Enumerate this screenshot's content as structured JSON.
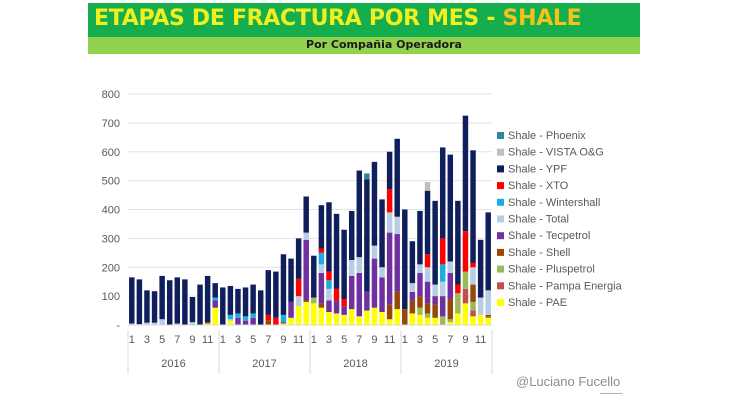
{
  "header": {
    "title_main": "ETAPAS DE FRACTURA POR MES - ",
    "title_highlight": "SHALE",
    "subtitle": "Por Compañia Operadora"
  },
  "watermark": "@Luciano Fucello",
  "chart_data": {
    "type": "bar",
    "stacked": true,
    "title": "ETAPAS DE FRACTURA POR MES - SHALE",
    "subtitle": "Por Compañia Operadora",
    "xlabel": "",
    "ylabel": "",
    "ylim": [
      0,
      800
    ],
    "yticks": [
      0,
      100,
      200,
      300,
      400,
      500,
      600,
      700,
      800
    ],
    "ytick_labels": [
      "-",
      "100",
      "200",
      "300",
      "400",
      "500",
      "600",
      "700",
      "800"
    ],
    "grid": true,
    "legend_position": "right",
    "years": [
      "2016",
      "2017",
      "2018",
      "2019"
    ],
    "month_tick_labels": [
      "1",
      "3",
      "5",
      "7",
      "9",
      "11"
    ],
    "categories": [
      "2016-1",
      "2016-2",
      "2016-3",
      "2016-4",
      "2016-5",
      "2016-6",
      "2016-7",
      "2016-8",
      "2016-9",
      "2016-10",
      "2016-11",
      "2016-12",
      "2017-1",
      "2017-2",
      "2017-3",
      "2017-4",
      "2017-5",
      "2017-6",
      "2017-7",
      "2017-8",
      "2017-9",
      "2017-10",
      "2017-11",
      "2017-12",
      "2018-1",
      "2018-2",
      "2018-3",
      "2018-4",
      "2018-5",
      "2018-6",
      "2018-7",
      "2018-8",
      "2018-9",
      "2018-10",
      "2018-11",
      "2018-12",
      "2019-1",
      "2019-2",
      "2019-3",
      "2019-4",
      "2019-5",
      "2019-6",
      "2019-7",
      "2019-8",
      "2019-9",
      "2019-10",
      "2019-11",
      "2019-12"
    ],
    "series": [
      {
        "name": "Shale - PAE",
        "color": "#ffff00",
        "values": [
          0,
          0,
          0,
          0,
          0,
          0,
          0,
          0,
          0,
          0,
          5,
          60,
          0,
          15,
          0,
          0,
          0,
          0,
          0,
          0,
          5,
          25,
          65,
          80,
          75,
          60,
          45,
          40,
          35,
          55,
          30,
          50,
          60,
          45,
          20,
          55,
          0,
          40,
          35,
          25,
          25,
          0,
          10,
          40,
          75,
          30,
          35,
          25
        ]
      },
      {
        "name": "Shale - Pampa Energia",
        "color": "#c0504d",
        "values": [
          0,
          0,
          0,
          0,
          0,
          0,
          0,
          0,
          0,
          0,
          0,
          0,
          0,
          0,
          0,
          0,
          0,
          0,
          0,
          0,
          0,
          0,
          0,
          0,
          0,
          0,
          0,
          0,
          0,
          0,
          0,
          0,
          0,
          0,
          0,
          0,
          0,
          0,
          0,
          0,
          0,
          0,
          0,
          0,
          50,
          20,
          0,
          5
        ]
      },
      {
        "name": "Shale - Pluspetrol",
        "color": "#9bbb59",
        "values": [
          0,
          0,
          0,
          0,
          0,
          0,
          0,
          0,
          0,
          0,
          0,
          0,
          0,
          0,
          0,
          0,
          0,
          0,
          0,
          0,
          0,
          0,
          0,
          0,
          20,
          0,
          0,
          0,
          0,
          0,
          0,
          0,
          0,
          0,
          0,
          0,
          0,
          0,
          25,
          15,
          0,
          30,
          10,
          70,
          60,
          30,
          0,
          0
        ]
      },
      {
        "name": "Shale - Shell",
        "color": "#974706",
        "values": [
          0,
          0,
          0,
          0,
          0,
          0,
          0,
          0,
          0,
          0,
          5,
          0,
          0,
          0,
          0,
          0,
          0,
          0,
          15,
          0,
          5,
          0,
          0,
          5,
          0,
          15,
          0,
          0,
          0,
          0,
          0,
          0,
          0,
          0,
          50,
          60,
          55,
          45,
          40,
          35,
          45,
          0,
          70,
          0,
          0,
          60,
          0,
          5
        ]
      },
      {
        "name": "Shale - Tecpetrol",
        "color": "#7030a0",
        "values": [
          0,
          0,
          0,
          0,
          0,
          0,
          0,
          0,
          0,
          0,
          0,
          25,
          0,
          0,
          25,
          15,
          25,
          0,
          0,
          0,
          0,
          55,
          0,
          210,
          0,
          105,
          40,
          45,
          30,
          115,
          150,
          65,
          170,
          120,
          250,
          200,
          0,
          30,
          80,
          75,
          30,
          70,
          90,
          0,
          0,
          0,
          0,
          0
        ]
      },
      {
        "name": "Shale - Total",
        "color": "#b8cce4",
        "values": [
          5,
          3,
          8,
          8,
          20,
          0,
          5,
          0,
          10,
          0,
          0,
          0,
          0,
          5,
          0,
          0,
          0,
          0,
          0,
          0,
          0,
          0,
          35,
          25,
          0,
          30,
          40,
          0,
          0,
          55,
          55,
          0,
          45,
          35,
          70,
          60,
          0,
          30,
          30,
          50,
          40,
          50,
          40,
          0,
          0,
          60,
          60,
          85
        ]
      },
      {
        "name": "Shale - Wintershall",
        "color": "#1cade4",
        "values": [
          0,
          0,
          0,
          0,
          0,
          0,
          0,
          0,
          0,
          0,
          0,
          10,
          0,
          15,
          15,
          15,
          15,
          0,
          0,
          0,
          25,
          0,
          0,
          0,
          0,
          40,
          30,
          0,
          0,
          0,
          0,
          0,
          0,
          0,
          0,
          0,
          0,
          0,
          0,
          0,
          0,
          60,
          0,
          0,
          0,
          0,
          0,
          0
        ]
      },
      {
        "name": "Shale - XTO",
        "color": "#ff0000",
        "values": [
          0,
          0,
          0,
          0,
          0,
          0,
          0,
          0,
          0,
          0,
          0,
          0,
          0,
          0,
          0,
          0,
          0,
          0,
          20,
          25,
          0,
          0,
          60,
          0,
          0,
          15,
          30,
          40,
          25,
          0,
          0,
          0,
          0,
          0,
          80,
          0,
          0,
          0,
          0,
          45,
          0,
          90,
          0,
          30,
          140,
          15,
          0,
          0
        ]
      },
      {
        "name": "Shale - YPF",
        "color": "#0f1f5c",
        "values": [
          160,
          155,
          112,
          109,
          150,
          155,
          160,
          158,
          87,
          140,
          160,
          50,
          130,
          100,
          85,
          100,
          100,
          120,
          155,
          160,
          210,
          150,
          140,
          125,
          145,
          150,
          240,
          260,
          240,
          170,
          300,
          390,
          290,
          235,
          130,
          270,
          345,
          145,
          185,
          220,
          290,
          315,
          370,
          290,
          400,
          390,
          200,
          270
        ]
      },
      {
        "name": "Shale - VISTA O&G",
        "color": "#bfbfbf",
        "values": [
          0,
          0,
          0,
          0,
          0,
          0,
          0,
          0,
          0,
          0,
          0,
          0,
          0,
          0,
          0,
          0,
          0,
          0,
          0,
          0,
          0,
          0,
          0,
          0,
          0,
          0,
          0,
          0,
          0,
          0,
          0,
          0,
          0,
          0,
          0,
          0,
          0,
          0,
          0,
          30,
          0,
          0,
          0,
          0,
          0,
          0,
          0,
          0
        ]
      },
      {
        "name": "Shale - Phoenix",
        "color": "#31859c",
        "values": [
          0,
          0,
          0,
          0,
          0,
          0,
          0,
          0,
          0,
          0,
          0,
          0,
          0,
          0,
          0,
          0,
          0,
          0,
          0,
          0,
          0,
          0,
          0,
          0,
          0,
          0,
          0,
          0,
          0,
          0,
          0,
          20,
          0,
          0,
          0,
          0,
          0,
          0,
          0,
          0,
          0,
          0,
          0,
          0,
          0,
          0,
          0,
          0
        ]
      }
    ]
  }
}
